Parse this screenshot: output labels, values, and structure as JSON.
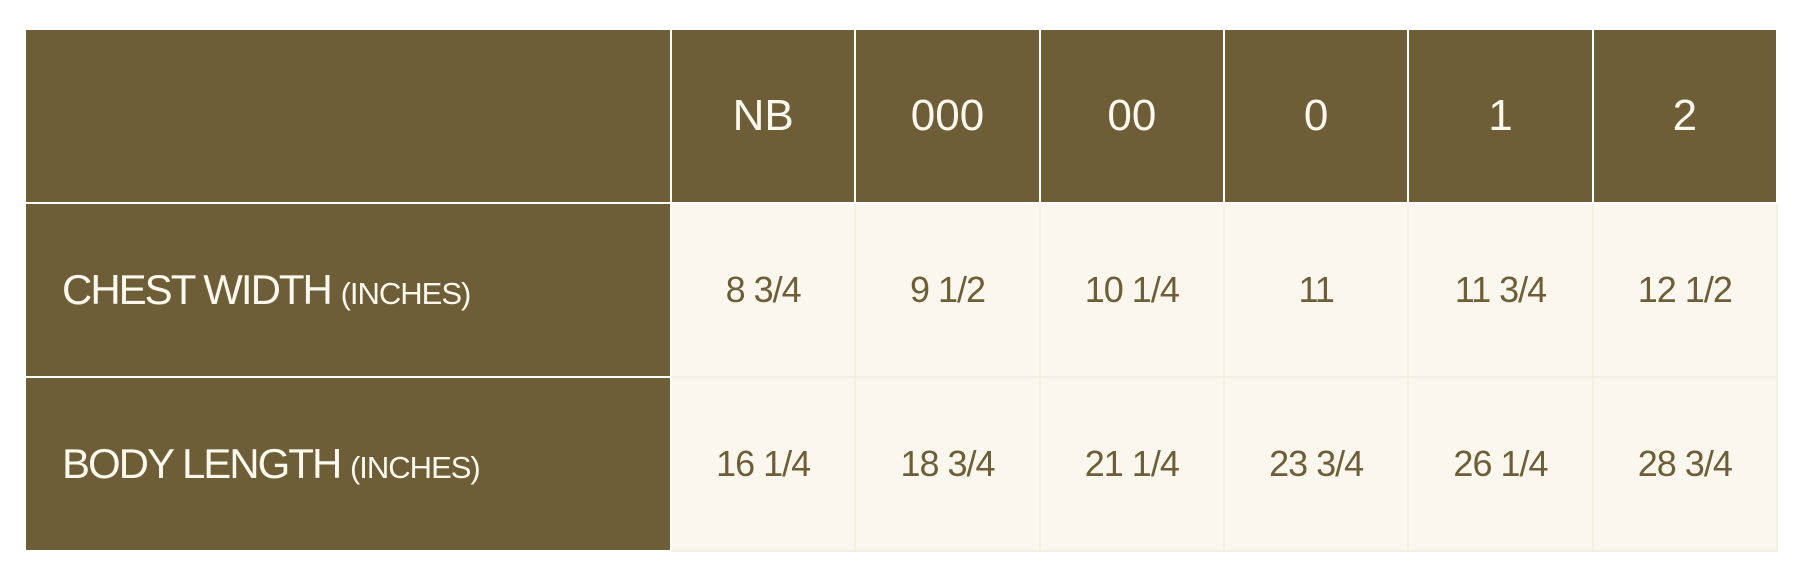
{
  "table": {
    "columns": [
      "NB",
      "000",
      "00",
      "0",
      "1",
      "2"
    ],
    "rows": [
      {
        "label": "CHEST WIDTH",
        "unit": "(INCHES)",
        "values": [
          "8 3/4",
          "9 1/2",
          "10 1/4",
          "11",
          "11 3/4",
          "12 1/2"
        ]
      },
      {
        "label": "BODY LENGTH",
        "unit": "(INCHES)",
        "values": [
          "16 1/4",
          "18 3/4",
          "21 1/4",
          "23 3/4",
          "26 1/4",
          "28 3/4"
        ]
      }
    ]
  },
  "colors": {
    "header_bg": "#6e5e37",
    "cell_bg": "#f9f7ee",
    "header_text": "#fbf8ee",
    "cell_text": "#6e5e37"
  }
}
